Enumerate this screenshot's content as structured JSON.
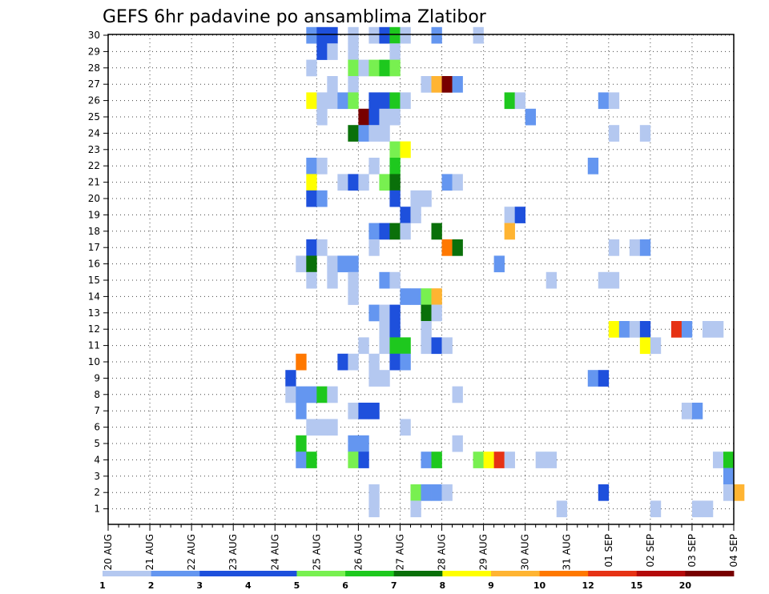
{
  "chart_data": {
    "type": "heatmap",
    "title": "GEFS 6hr padavine po ansamblima Zlatibor",
    "xlabel": "",
    "ylabel": "",
    "y_ticks": [
      1,
      2,
      3,
      4,
      5,
      6,
      7,
      8,
      9,
      10,
      11,
      12,
      13,
      14,
      15,
      16,
      17,
      18,
      19,
      20,
      21,
      22,
      23,
      24,
      25,
      26,
      27,
      28,
      29,
      30
    ],
    "x_tick_labels": [
      "20 AUG",
      "21 AUG",
      "22 AUG",
      "23 AUG",
      "24 AUG",
      "25 AUG",
      "26 AUG",
      "27 AUG",
      "28 AUG",
      "29 AUG",
      "30 AUG",
      "31 AUG",
      "01 SEP",
      "02 SEP",
      "03 SEP",
      "04 SEP"
    ],
    "x_steps_per_day": 4,
    "grid": true,
    "colorbar": {
      "position": "bottom",
      "labels": [
        "1",
        "2",
        "3",
        "4",
        "5",
        "6",
        "7",
        "8",
        "9",
        "10",
        "12",
        "15",
        "20"
      ],
      "colors": [
        "#b4c8f0",
        "#6496f0",
        "#1e50dc",
        "#1e50dc",
        "#78f050",
        "#1ec81e",
        "#0a700a",
        "#ffff00",
        "#ffb432",
        "#ff7800",
        "#e63214",
        "#b40a0a",
        "#780000"
      ]
    },
    "level_colors": {
      "1": "#b4c8f0",
      "2": "#6496f0",
      "3": "#1e50dc",
      "4": "#78f050",
      "5": "#1ec81e",
      "6": "#0a700a",
      "7": "#ffff00",
      "8": "#ffb432",
      "9": "#ff7800",
      "10": "#e63214",
      "11": "#b40a0a",
      "12": "#780000"
    },
    "cells": [
      [
        30,
        19,
        2
      ],
      [
        30,
        20,
        3
      ],
      [
        30,
        21,
        3
      ],
      [
        30,
        23,
        1
      ],
      [
        30,
        25,
        1
      ],
      [
        30,
        26,
        3
      ],
      [
        30,
        27,
        5
      ],
      [
        30,
        28,
        1
      ],
      [
        30,
        31,
        2
      ],
      [
        30,
        35,
        1
      ],
      [
        29,
        20,
        3
      ],
      [
        29,
        21,
        1
      ],
      [
        29,
        23,
        1
      ],
      [
        29,
        27,
        1
      ],
      [
        28,
        19,
        1
      ],
      [
        28,
        23,
        4
      ],
      [
        28,
        24,
        1
      ],
      [
        28,
        25,
        4
      ],
      [
        28,
        26,
        5
      ],
      [
        28,
        27,
        4
      ],
      [
        27,
        21,
        1
      ],
      [
        27,
        23,
        1
      ],
      [
        27,
        30,
        1
      ],
      [
        27,
        31,
        8
      ],
      [
        27,
        32,
        12
      ],
      [
        27,
        33,
        2
      ],
      [
        26,
        19,
        7
      ],
      [
        26,
        20,
        1
      ],
      [
        26,
        21,
        1
      ],
      [
        26,
        22,
        2
      ],
      [
        26,
        23,
        4
      ],
      [
        26,
        25,
        3
      ],
      [
        26,
        26,
        3
      ],
      [
        26,
        27,
        5
      ],
      [
        26,
        28,
        1
      ],
      [
        26,
        38,
        5
      ],
      [
        26,
        39,
        1
      ],
      [
        26,
        47,
        2
      ],
      [
        26,
        48,
        1
      ],
      [
        25,
        20,
        1
      ],
      [
        25,
        24,
        12
      ],
      [
        25,
        25,
        3
      ],
      [
        25,
        26,
        1
      ],
      [
        25,
        27,
        1
      ],
      [
        25,
        40,
        2
      ],
      [
        24,
        23,
        6
      ],
      [
        24,
        24,
        2
      ],
      [
        24,
        25,
        1
      ],
      [
        24,
        26,
        1
      ],
      [
        24,
        48,
        1
      ],
      [
        24,
        51,
        1
      ],
      [
        23,
        27,
        4
      ],
      [
        23,
        28,
        7
      ],
      [
        22,
        19,
        2
      ],
      [
        22,
        20,
        1
      ],
      [
        22,
        25,
        1
      ],
      [
        22,
        27,
        5
      ],
      [
        22,
        46,
        2
      ],
      [
        21,
        19,
        7
      ],
      [
        21,
        22,
        1
      ],
      [
        21,
        23,
        3
      ],
      [
        21,
        24,
        1
      ],
      [
        21,
        26,
        4
      ],
      [
        21,
        27,
        6
      ],
      [
        21,
        32,
        2
      ],
      [
        21,
        33,
        1
      ],
      [
        20,
        19,
        3
      ],
      [
        20,
        20,
        2
      ],
      [
        20,
        27,
        3
      ],
      [
        20,
        29,
        1
      ],
      [
        20,
        30,
        1
      ],
      [
        19,
        28,
        3
      ],
      [
        19,
        29,
        1
      ],
      [
        19,
        38,
        1
      ],
      [
        19,
        39,
        3
      ],
      [
        18,
        25,
        2
      ],
      [
        18,
        26,
        3
      ],
      [
        18,
        27,
        6
      ],
      [
        18,
        28,
        1
      ],
      [
        18,
        31,
        6
      ],
      [
        18,
        38,
        8
      ],
      [
        17,
        19,
        3
      ],
      [
        17,
        20,
        1
      ],
      [
        17,
        25,
        1
      ],
      [
        17,
        32,
        9
      ],
      [
        17,
        33,
        6
      ],
      [
        17,
        48,
        1
      ],
      [
        17,
        50,
        1
      ],
      [
        17,
        51,
        2
      ],
      [
        16,
        18,
        1
      ],
      [
        16,
        19,
        6
      ],
      [
        16,
        21,
        1
      ],
      [
        16,
        22,
        2
      ],
      [
        16,
        23,
        2
      ],
      [
        16,
        37,
        2
      ],
      [
        15,
        19,
        1
      ],
      [
        15,
        21,
        1
      ],
      [
        15,
        23,
        1
      ],
      [
        15,
        26,
        2
      ],
      [
        15,
        27,
        1
      ],
      [
        15,
        42,
        1
      ],
      [
        15,
        47,
        1
      ],
      [
        15,
        48,
        1
      ],
      [
        14,
        23,
        1
      ],
      [
        14,
        28,
        2
      ],
      [
        14,
        29,
        2
      ],
      [
        14,
        30,
        4
      ],
      [
        14,
        31,
        8
      ],
      [
        13,
        25,
        2
      ],
      [
        13,
        26,
        1
      ],
      [
        13,
        27,
        3
      ],
      [
        13,
        30,
        6
      ],
      [
        13,
        31,
        1
      ],
      [
        12,
        26,
        1
      ],
      [
        12,
        27,
        3
      ],
      [
        12,
        30,
        1
      ],
      [
        12,
        48,
        7
      ],
      [
        12,
        49,
        2
      ],
      [
        12,
        50,
        1
      ],
      [
        12,
        51,
        3
      ],
      [
        12,
        54,
        10
      ],
      [
        12,
        55,
        2
      ],
      [
        12,
        57,
        1
      ],
      [
        12,
        58,
        1
      ],
      [
        11,
        24,
        1
      ],
      [
        11,
        26,
        1
      ],
      [
        11,
        27,
        5
      ],
      [
        11,
        28,
        5
      ],
      [
        11,
        30,
        1
      ],
      [
        11,
        31,
        3
      ],
      [
        11,
        32,
        1
      ],
      [
        11,
        51,
        7
      ],
      [
        11,
        52,
        1
      ],
      [
        10,
        18,
        9
      ],
      [
        10,
        22,
        3
      ],
      [
        10,
        23,
        1
      ],
      [
        10,
        25,
        1
      ],
      [
        10,
        27,
        3
      ],
      [
        10,
        28,
        2
      ],
      [
        9,
        17,
        3
      ],
      [
        9,
        25,
        1
      ],
      [
        9,
        26,
        1
      ],
      [
        9,
        46,
        2
      ],
      [
        9,
        47,
        3
      ],
      [
        8,
        17,
        1
      ],
      [
        8,
        18,
        2
      ],
      [
        8,
        19,
        2
      ],
      [
        8,
        20,
        5
      ],
      [
        8,
        21,
        1
      ],
      [
        8,
        33,
        1
      ],
      [
        7,
        18,
        2
      ],
      [
        7,
        23,
        1
      ],
      [
        7,
        24,
        3
      ],
      [
        7,
        25,
        3
      ],
      [
        7,
        55,
        1
      ],
      [
        7,
        56,
        2
      ],
      [
        6,
        19,
        1
      ],
      [
        6,
        20,
        1
      ],
      [
        6,
        21,
        1
      ],
      [
        6,
        28,
        1
      ],
      [
        5,
        18,
        5
      ],
      [
        5,
        23,
        2
      ],
      [
        5,
        24,
        2
      ],
      [
        5,
        33,
        1
      ],
      [
        4,
        18,
        2
      ],
      [
        4,
        19,
        5
      ],
      [
        4,
        23,
        4
      ],
      [
        4,
        24,
        3
      ],
      [
        4,
        30,
        2
      ],
      [
        4,
        31,
        5
      ],
      [
        4,
        35,
        4
      ],
      [
        4,
        36,
        7
      ],
      [
        4,
        37,
        10
      ],
      [
        4,
        38,
        1
      ],
      [
        4,
        41,
        1
      ],
      [
        4,
        42,
        1
      ],
      [
        4,
        58,
        1
      ],
      [
        4,
        59,
        5
      ],
      [
        3,
        59,
        2
      ],
      [
        2,
        25,
        1
      ],
      [
        2,
        29,
        4
      ],
      [
        2,
        30,
        2
      ],
      [
        2,
        31,
        2
      ],
      [
        2,
        32,
        1
      ],
      [
        2,
        47,
        3
      ],
      [
        2,
        59,
        1
      ],
      [
        2,
        60,
        8
      ],
      [
        1,
        25,
        1
      ],
      [
        1,
        29,
        1
      ],
      [
        1,
        43,
        1
      ],
      [
        1,
        52,
        1
      ],
      [
        1,
        56,
        1
      ],
      [
        1,
        57,
        1
      ]
    ]
  }
}
